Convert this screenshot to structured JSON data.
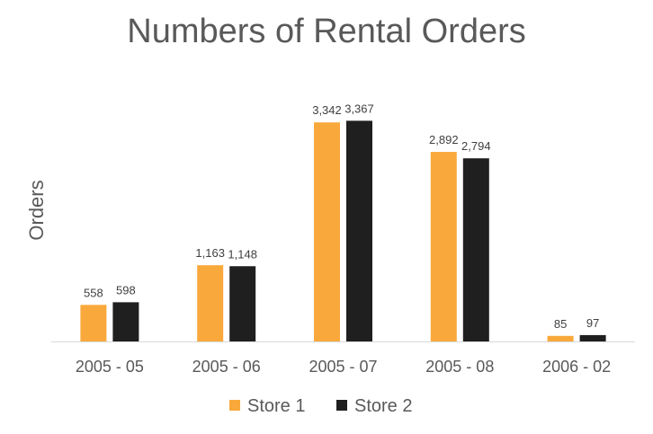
{
  "chart_data": {
    "type": "bar",
    "title": "Numbers of Rental Orders",
    "xlabel": "",
    "ylabel": "Orders",
    "categories": [
      "2005 - 05",
      "2005 - 06",
      "2005 - 07",
      "2005 - 08",
      "2006 - 02"
    ],
    "series": [
      {
        "name": "Store 1",
        "color": "#F9A93B",
        "values": [
          558,
          1163,
          3342,
          2892,
          85
        ],
        "labels": [
          "558",
          "1,163",
          "3,342",
          "2,892",
          "85"
        ]
      },
      {
        "name": "Store 2",
        "color": "#1F1F1F",
        "values": [
          598,
          1148,
          3367,
          2794,
          97
        ],
        "labels": [
          "598",
          "1,148",
          "3,367",
          "2,794",
          "97"
        ]
      }
    ],
    "ylim": [
      0,
      3400
    ],
    "grid": false,
    "legend": "bottom"
  }
}
